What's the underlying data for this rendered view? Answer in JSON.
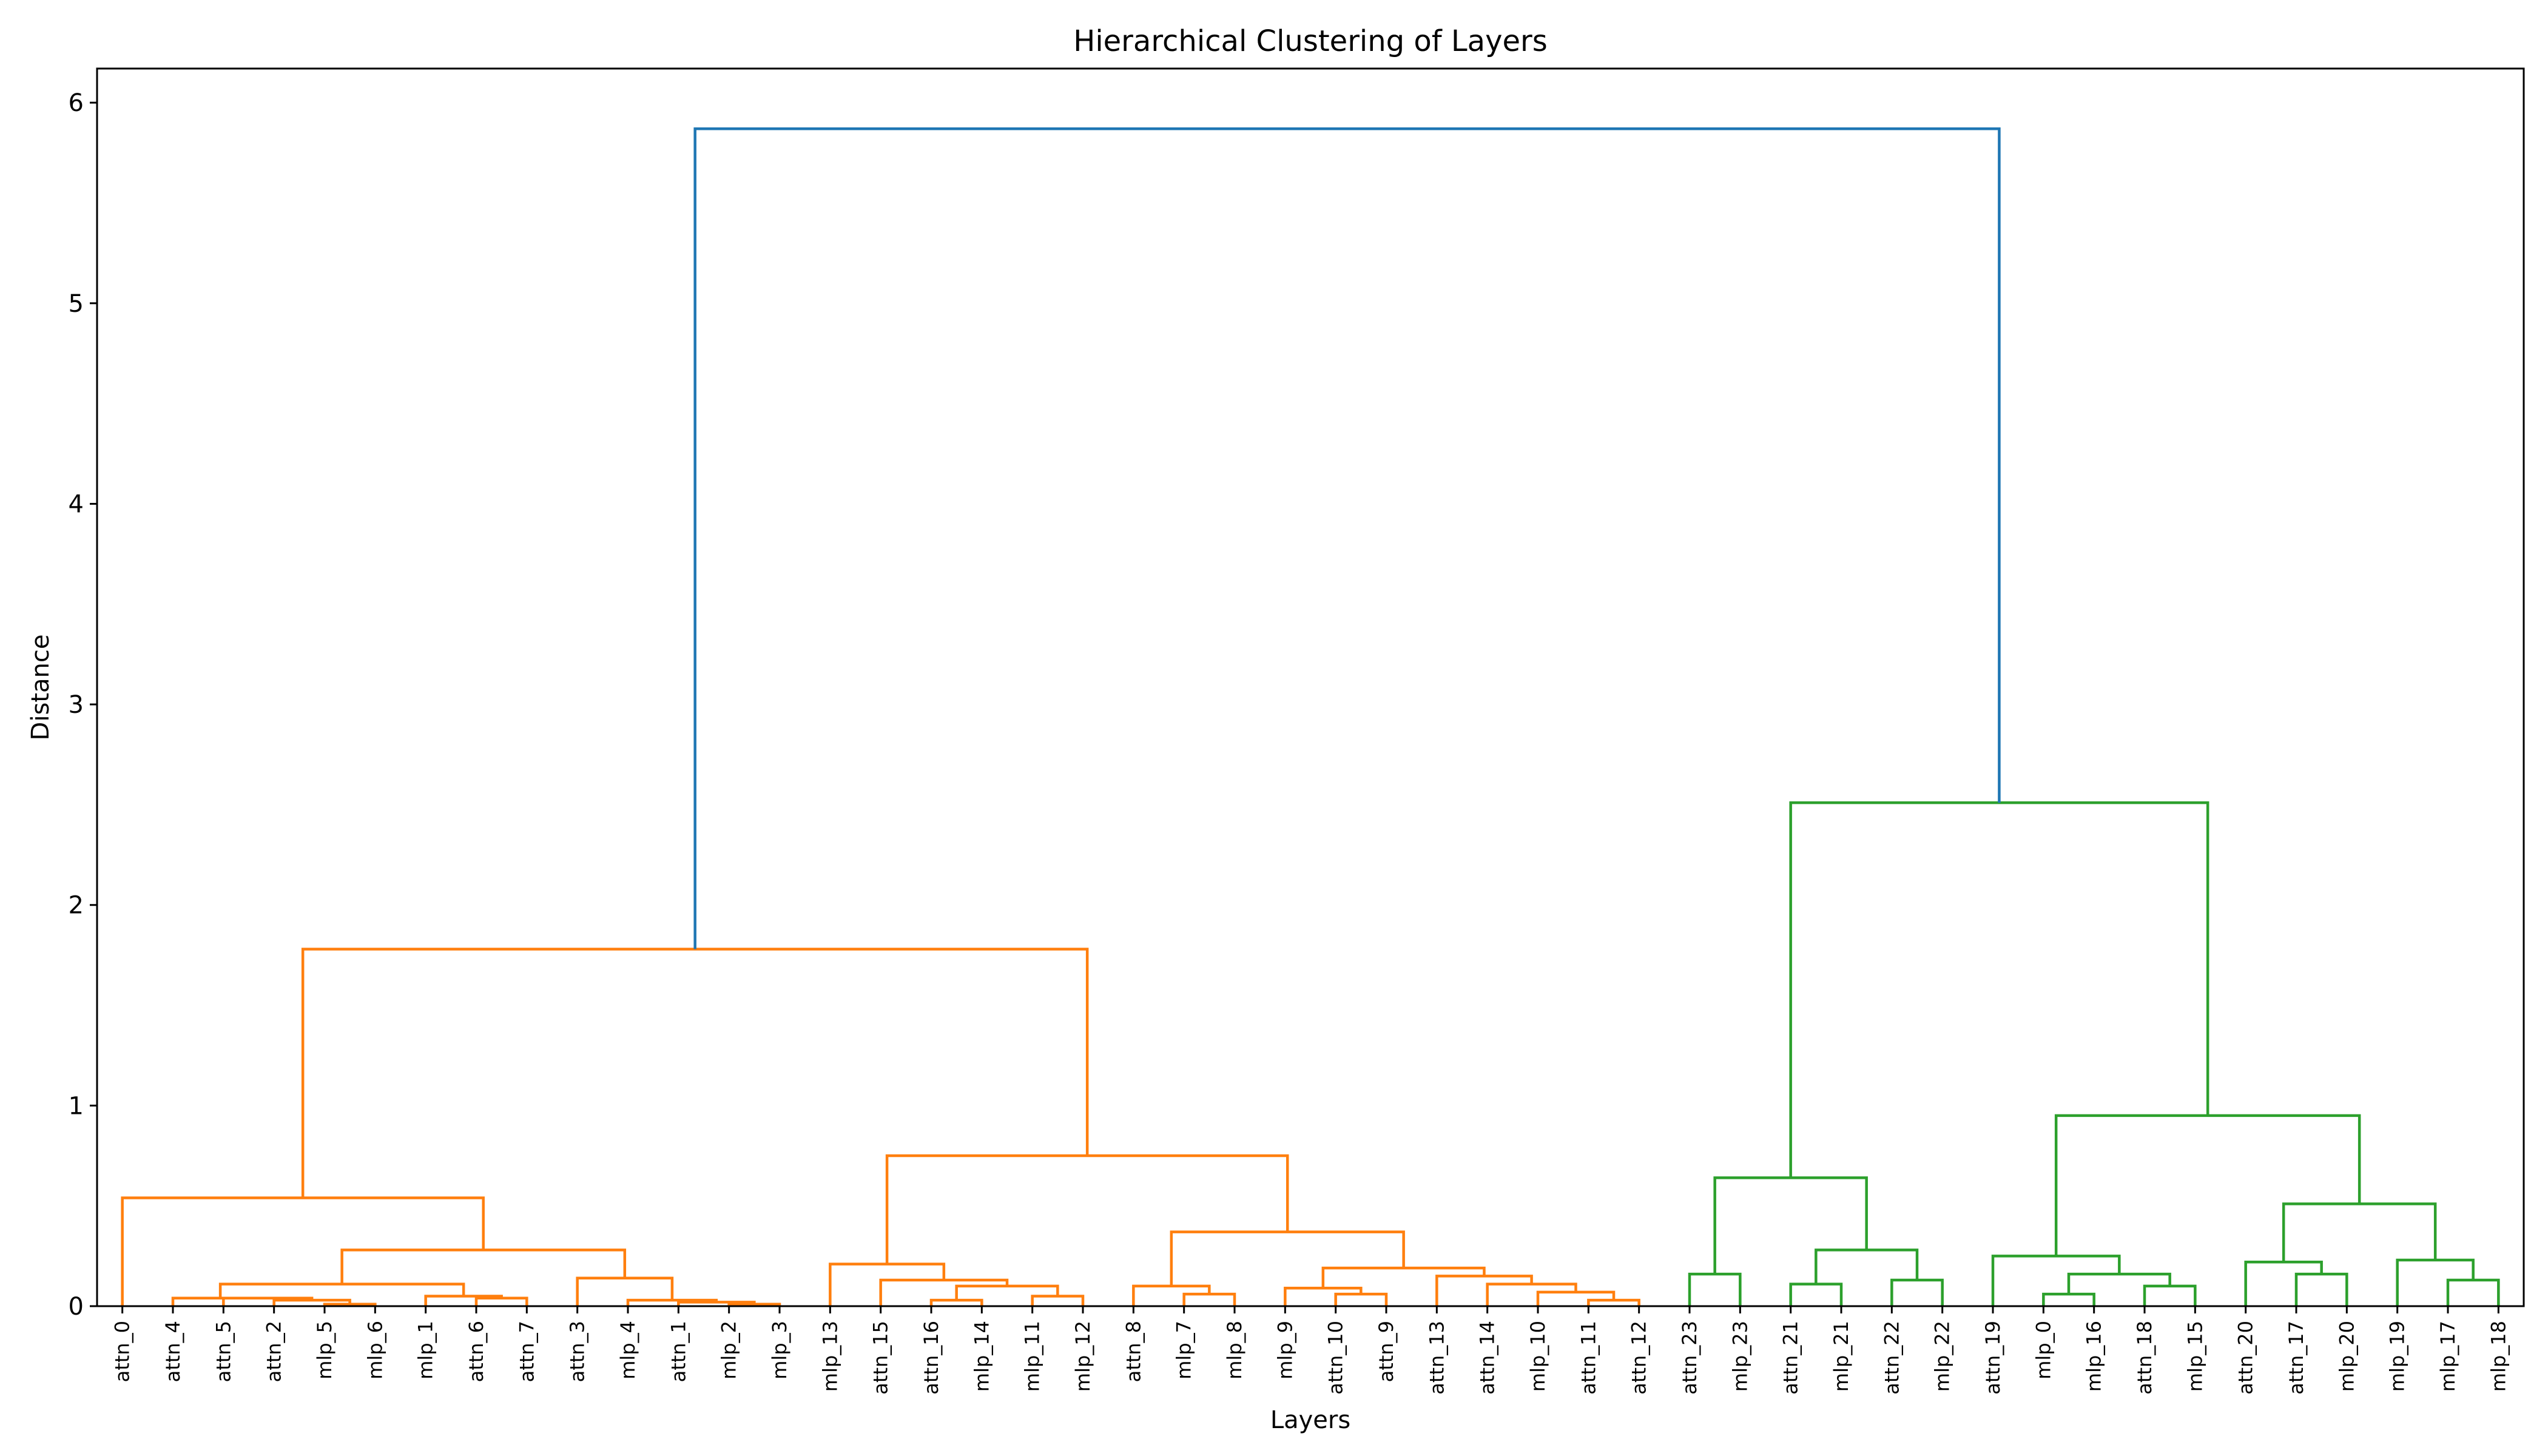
{
  "chart_data": {
    "type": "dendrogram",
    "title": "Hierarchical Clustering of Layers",
    "xlabel": "Layers",
    "ylabel": "Distance",
    "ylim": [
      0,
      6.17
    ],
    "yticks": [
      0,
      1,
      2,
      3,
      4,
      5,
      6
    ],
    "grid": false,
    "leaves": [
      "attn_0",
      "attn_4",
      "attn_5",
      "attn_2",
      "mlp_5",
      "mlp_6",
      "mlp_1",
      "attn_6",
      "attn_7",
      "attn_3",
      "mlp_4",
      "attn_1",
      "mlp_2",
      "mlp_3",
      "mlp_13",
      "attn_15",
      "attn_16",
      "mlp_14",
      "mlp_11",
      "mlp_12",
      "attn_8",
      "mlp_7",
      "mlp_8",
      "mlp_9",
      "attn_10",
      "attn_9",
      "attn_13",
      "attn_14",
      "mlp_10",
      "attn_11",
      "attn_12",
      "attn_23",
      "mlp_23",
      "attn_21",
      "mlp_21",
      "attn_22",
      "mlp_22",
      "attn_19",
      "mlp_0",
      "mlp_16",
      "attn_18",
      "mlp_15",
      "attn_20",
      "attn_17",
      "mlp_20",
      "mlp_19",
      "mlp_17",
      "mlp_18"
    ],
    "colors": {
      "root": "#1f77b4",
      "cluster1": "#ff7f0e",
      "cluster2": "#2ca02c"
    },
    "links": [
      {
        "left": "L12",
        "right": "L13",
        "height": 0.01,
        "color": "cluster1"
      },
      {
        "left": "L11",
        "right": "N0",
        "height": 0.02,
        "color": "cluster1"
      },
      {
        "left": "L10",
        "right": "N1",
        "height": 0.03,
        "color": "cluster1"
      },
      {
        "left": "L9",
        "right": "N2",
        "height": 0.14,
        "color": "cluster1"
      },
      {
        "left": "L4",
        "right": "L5",
        "height": 0.01,
        "color": "cluster1"
      },
      {
        "left": "L3",
        "right": "N4",
        "height": 0.03,
        "color": "cluster1"
      },
      {
        "left": "L2",
        "right": "N5",
        "height": 0.04,
        "color": "cluster1"
      },
      {
        "left": "L1",
        "right": "N6",
        "height": 0.04,
        "color": "cluster1"
      },
      {
        "left": "L7",
        "right": "L8",
        "height": 0.04,
        "color": "cluster1"
      },
      {
        "left": "L6",
        "right": "N8",
        "height": 0.05,
        "color": "cluster1"
      },
      {
        "left": "N7",
        "right": "N9",
        "height": 0.11,
        "color": "cluster1"
      },
      {
        "left": "N10",
        "right": "N3",
        "height": 0.28,
        "color": "cluster1"
      },
      {
        "left": "L0",
        "right": "N11",
        "height": 0.54,
        "color": "cluster1"
      },
      {
        "left": "L16",
        "right": "L17",
        "height": 0.03,
        "color": "cluster1"
      },
      {
        "left": "L18",
        "right": "L19",
        "height": 0.05,
        "color": "cluster1"
      },
      {
        "left": "N13",
        "right": "N14",
        "height": 0.1,
        "color": "cluster1"
      },
      {
        "left": "L15",
        "right": "N15",
        "height": 0.13,
        "color": "cluster1"
      },
      {
        "left": "L14",
        "right": "N16",
        "height": 0.21,
        "color": "cluster1"
      },
      {
        "left": "L21",
        "right": "L22",
        "height": 0.06,
        "color": "cluster1"
      },
      {
        "left": "L20",
        "right": "N18",
        "height": 0.1,
        "color": "cluster1"
      },
      {
        "left": "L24",
        "right": "L25",
        "height": 0.06,
        "color": "cluster1"
      },
      {
        "left": "L23",
        "right": "N20",
        "height": 0.09,
        "color": "cluster1"
      },
      {
        "left": "L29",
        "right": "L30",
        "height": 0.03,
        "color": "cluster1"
      },
      {
        "left": "L28",
        "right": "N22",
        "height": 0.07,
        "color": "cluster1"
      },
      {
        "left": "L27",
        "right": "N23",
        "height": 0.11,
        "color": "cluster1"
      },
      {
        "left": "L26",
        "right": "N24",
        "height": 0.15,
        "color": "cluster1"
      },
      {
        "left": "N21",
        "right": "N25",
        "height": 0.19,
        "color": "cluster1"
      },
      {
        "left": "N19",
        "right": "N26",
        "height": 0.37,
        "color": "cluster1"
      },
      {
        "left": "N17",
        "right": "N27",
        "height": 0.75,
        "color": "cluster1"
      },
      {
        "left": "N12",
        "right": "N28",
        "height": 1.78,
        "color": "cluster1"
      },
      {
        "left": "L31",
        "right": "L32",
        "height": 0.16,
        "color": "cluster2"
      },
      {
        "left": "L33",
        "right": "L34",
        "height": 0.11,
        "color": "cluster2"
      },
      {
        "left": "L35",
        "right": "L36",
        "height": 0.13,
        "color": "cluster2"
      },
      {
        "left": "N31",
        "right": "N32",
        "height": 0.28,
        "color": "cluster2"
      },
      {
        "left": "N30",
        "right": "N33",
        "height": 0.64,
        "color": "cluster2"
      },
      {
        "left": "L38",
        "right": "L39",
        "height": 0.06,
        "color": "cluster2"
      },
      {
        "left": "L40",
        "right": "L41",
        "height": 0.1,
        "color": "cluster2"
      },
      {
        "left": "N35",
        "right": "N36",
        "height": 0.16,
        "color": "cluster2"
      },
      {
        "left": "L37",
        "right": "N37",
        "height": 0.25,
        "color": "cluster2"
      },
      {
        "left": "L43",
        "right": "L44",
        "height": 0.16,
        "color": "cluster2"
      },
      {
        "left": "L42",
        "right": "N39",
        "height": 0.22,
        "color": "cluster2"
      },
      {
        "left": "L46",
        "right": "L47",
        "height": 0.13,
        "color": "cluster2"
      },
      {
        "left": "L45",
        "right": "N41",
        "height": 0.23,
        "color": "cluster2"
      },
      {
        "left": "N40",
        "right": "N42",
        "height": 0.51,
        "color": "cluster2"
      },
      {
        "left": "N38",
        "right": "N43",
        "height": 0.95,
        "color": "cluster2"
      },
      {
        "left": "N34",
        "right": "N44",
        "height": 2.51,
        "color": "cluster2"
      },
      {
        "left": "N29",
        "right": "N45",
        "height": 5.87,
        "color": "root"
      }
    ]
  }
}
